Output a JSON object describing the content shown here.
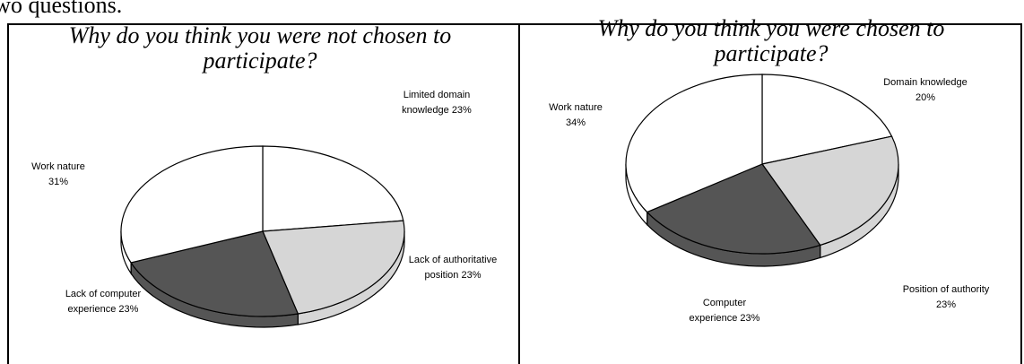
{
  "caption": "two questions.",
  "chart_data": [
    {
      "type": "pie",
      "title": "Why do you think you were not chosen to participate?",
      "categories": [
        "Limited domain knowledge",
        "Lack of authoritative position",
        "Lack of computer experience",
        "Work nature"
      ],
      "values": [
        23,
        23,
        23,
        31
      ],
      "value_labels": [
        "23%",
        "23%",
        "23%",
        "31%"
      ],
      "colors": [
        "#ffffff",
        "#d6d6d6",
        "#555555",
        "#ffffff"
      ]
    },
    {
      "type": "pie",
      "title": "Why do you think you were chosen to participate?",
      "categories": [
        "Domain knowledge",
        "Position of authority",
        "Computer experience",
        "Work nature"
      ],
      "values": [
        20,
        23,
        23,
        34
      ],
      "value_labels": [
        "20%",
        "23%",
        "23%",
        "34%"
      ],
      "colors": [
        "#ffffff",
        "#d6d6d6",
        "#555555",
        "#ffffff"
      ]
    }
  ]
}
